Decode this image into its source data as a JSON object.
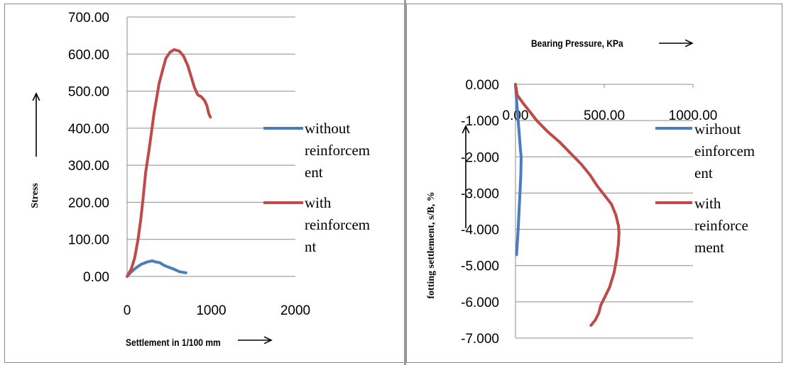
{
  "chart_data": [
    {
      "type": "line",
      "xlabel": "Settlement in 1/100 mm",
      "ylabel": "Stress",
      "xlim": [
        0,
        2000
      ],
      "ylim": [
        0,
        700
      ],
      "x_ticks": [
        "0",
        "1000",
        "2000"
      ],
      "y_ticks": [
        "0.00",
        "100.00",
        "200.00",
        "300.00",
        "400.00",
        "500.00",
        "600.00",
        "700.00"
      ],
      "grid": true,
      "legend_position": "right",
      "series": [
        {
          "name": "without reinforcement",
          "legend_lines": [
            "without",
            "reinforcem",
            "ent"
          ],
          "color": "#4a7ebb",
          "points": [
            [
              0,
              0
            ],
            [
              40,
              10
            ],
            [
              100,
              22
            ],
            [
              170,
              33
            ],
            [
              240,
              39
            ],
            [
              300,
              42
            ],
            [
              340,
              39
            ],
            [
              390,
              37
            ],
            [
              430,
              31
            ],
            [
              480,
              26
            ],
            [
              540,
              21
            ],
            [
              580,
              17
            ],
            [
              620,
              13
            ],
            [
              660,
              11
            ],
            [
              700,
              10
            ]
          ]
        },
        {
          "name": "with reinforcement",
          "legend_lines": [
            "with",
            "reinforcem",
            "nt"
          ],
          "color": "#be4b48",
          "points": [
            [
              0,
              0
            ],
            [
              50,
              20
            ],
            [
              90,
              50
            ],
            [
              130,
              100
            ],
            [
              160,
              150
            ],
            [
              190,
              210
            ],
            [
              220,
              280
            ],
            [
              260,
              340
            ],
            [
              290,
              390
            ],
            [
              320,
              440
            ],
            [
              350,
              480
            ],
            [
              380,
              520
            ],
            [
              420,
              555
            ],
            [
              460,
              588
            ],
            [
              510,
              605
            ],
            [
              560,
              612
            ],
            [
              620,
              608
            ],
            [
              670,
              595
            ],
            [
              720,
              570
            ],
            [
              760,
              540
            ],
            [
              800,
              510
            ],
            [
              840,
              490
            ],
            [
              880,
              485
            ],
            [
              920,
              475
            ],
            [
              950,
              460
            ],
            [
              970,
              440
            ],
            [
              990,
              430
            ]
          ]
        }
      ]
    },
    {
      "type": "line",
      "title": "Bearing Pressure, KPa",
      "ylabel": "fotting settlement, s/B, %",
      "xlim": [
        0,
        1000
      ],
      "ylim": [
        -7,
        0
      ],
      "x_ticks": [
        "0.00",
        "500.00",
        "1000.00"
      ],
      "y_ticks": [
        "0.000",
        "-1.000",
        "-2.000",
        "-3.000",
        "-4.000",
        "-5.000",
        "-6.000",
        "-7.000"
      ],
      "grid": true,
      "legend_position": "right",
      "series": [
        {
          "name": "wirhout einforcement",
          "legend_lines": [
            "wirhout",
            "einforcem",
            "ent"
          ],
          "color": "#4a7ebb",
          "points": [
            [
              0,
              0
            ],
            [
              4,
              -0.3
            ],
            [
              12,
              -0.8
            ],
            [
              20,
              -1.3
            ],
            [
              28,
              -1.8
            ],
            [
              32,
              -2.0
            ],
            [
              30,
              -2.5
            ],
            [
              25,
              -3.0
            ],
            [
              20,
              -3.5
            ],
            [
              15,
              -4.0
            ],
            [
              10,
              -4.4
            ],
            [
              6,
              -4.7
            ]
          ]
        },
        {
          "name": "with reinforcement",
          "legend_lines": [
            "with",
            "reinforce",
            "ment"
          ],
          "color": "#be4b48",
          "points": [
            [
              0,
              0
            ],
            [
              10,
              -0.3
            ],
            [
              40,
              -0.5
            ],
            [
              80,
              -0.75
            ],
            [
              120,
              -1.0
            ],
            [
              180,
              -1.3
            ],
            [
              250,
              -1.6
            ],
            [
              310,
              -1.9
            ],
            [
              370,
              -2.2
            ],
            [
              420,
              -2.5
            ],
            [
              460,
              -2.8
            ],
            [
              500,
              -3.05
            ],
            [
              540,
              -3.3
            ],
            [
              565,
              -3.6
            ],
            [
              580,
              -3.9
            ],
            [
              583,
              -4.1
            ],
            [
              580,
              -4.4
            ],
            [
              570,
              -4.8
            ],
            [
              555,
              -5.2
            ],
            [
              530,
              -5.6
            ],
            [
              500,
              -5.9
            ],
            [
              480,
              -6.1
            ],
            [
              470,
              -6.3
            ],
            [
              450,
              -6.5
            ],
            [
              425,
              -6.65
            ]
          ]
        }
      ]
    }
  ]
}
